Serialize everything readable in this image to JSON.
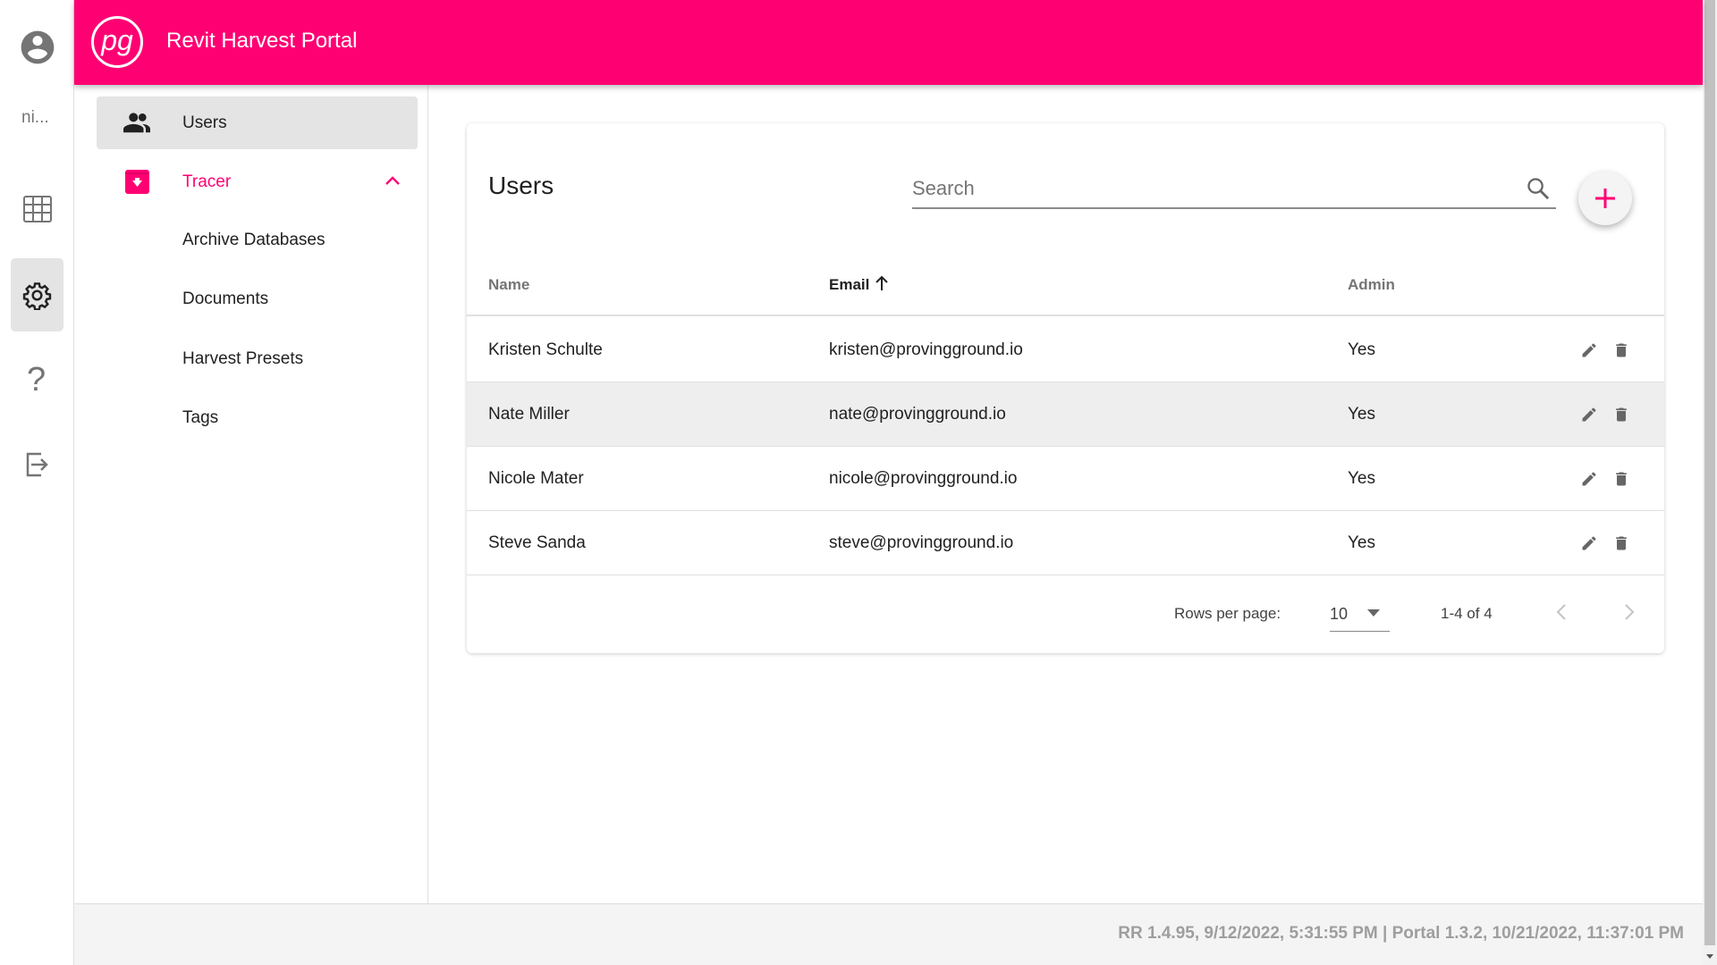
{
  "app": {
    "title": "Revit Harvest Portal",
    "logo_text": "pg",
    "accent": "#ff0073"
  },
  "rail": {
    "username": "ni...",
    "items": [
      "user-avatar",
      "grid-icon",
      "gear-icon",
      "help-icon",
      "logout-icon"
    ]
  },
  "sidebar": {
    "users": "Users",
    "tracer": "Tracer",
    "sub_items": [
      "Archive Databases",
      "Documents",
      "Harvest Presets",
      "Tags"
    ]
  },
  "main": {
    "title": "Users",
    "search_placeholder": "Search",
    "columns": {
      "name": "Name",
      "email": "Email",
      "admin": "Admin"
    },
    "sort": {
      "column": "Email",
      "direction": "ascending"
    },
    "rows": [
      {
        "name": "Kristen Schulte",
        "email": "kristen@provingground.io",
        "admin": "Yes"
      },
      {
        "name": "Nate Miller",
        "email": "nate@provingground.io",
        "admin": "Yes"
      },
      {
        "name": "Nicole Mater",
        "email": "nicole@provingground.io",
        "admin": "Yes"
      },
      {
        "name": "Steve Sanda",
        "email": "steve@provingground.io",
        "admin": "Yes"
      }
    ],
    "pagination": {
      "rows_label": "Rows per page:",
      "rows_value": "10",
      "range": "1-4 of 4"
    }
  },
  "footer": {
    "version": "RR 1.4.95, 9/12/2022, 5:31:55 PM | Portal 1.3.2, 10/21/2022, 11:37:01 PM"
  }
}
